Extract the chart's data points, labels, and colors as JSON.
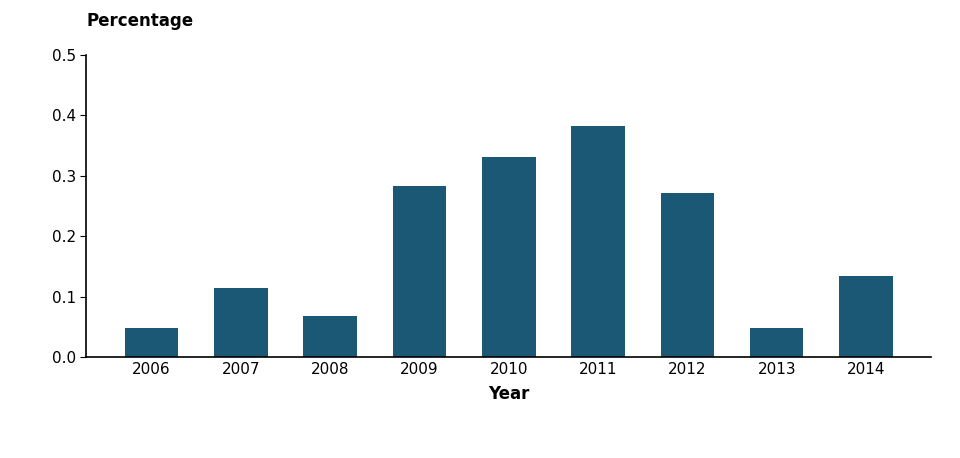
{
  "years": [
    "2006",
    "2007",
    "2008",
    "2009",
    "2010",
    "2011",
    "2012",
    "2013",
    "2014"
  ],
  "values": [
    0.048,
    0.114,
    0.069,
    0.284,
    0.332,
    0.383,
    0.272,
    0.049,
    0.135
  ],
  "bar_color": "#1a5876",
  "ylabel": "Percentage",
  "xlabel": "Year",
  "ylim": [
    0,
    0.5
  ],
  "yticks": [
    0.0,
    0.1,
    0.2,
    0.3,
    0.4,
    0.5
  ],
  "background_color": "#ffffff",
  "bar_width": 0.6
}
